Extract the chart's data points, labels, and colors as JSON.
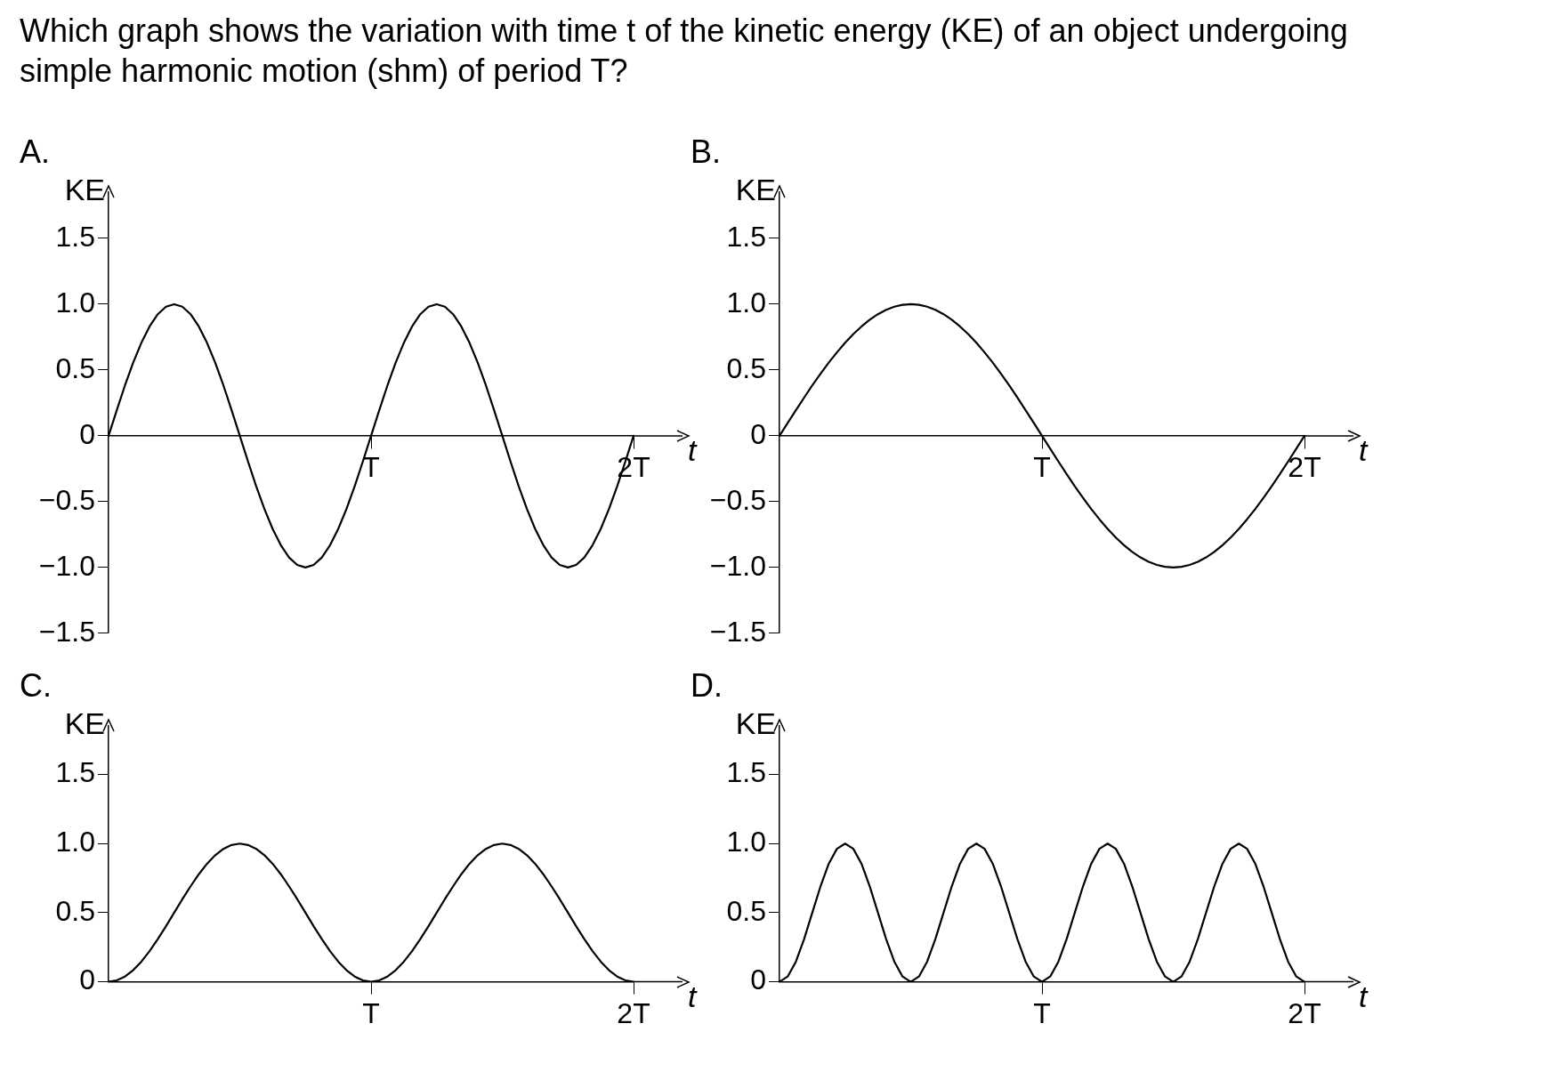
{
  "chart_data": [
    {
      "type": "line",
      "title": "A.",
      "annotations": [
        "Which graph shows the variation with time t of the kinetic energy (KE) of an object undergoing simple harmonic motion (shm) of period T?"
      ],
      "xlabel": "t",
      "ylabel": "KE",
      "marker": "none",
      "categories": [
        null,
        null,
        null,
        null,
        null,
        null,
        null,
        null,
        null,
        null,
        null,
        null,
        null,
        null,
        null,
        null,
        null,
        null,
        null,
        null,
        null,
        null,
        null,
        null,
        null,
        null,
        null,
        null,
        null,
        null,
        null,
        null,
        "T",
        null,
        null,
        null,
        null,
        null,
        null,
        null,
        null,
        null,
        null,
        null,
        null,
        null,
        null,
        null,
        null,
        null,
        null,
        null,
        null,
        null,
        null,
        null,
        null,
        null,
        null,
        null,
        null,
        null,
        null,
        null,
        "2T"
      ],
      "series": [
        {
          "color": "#000000",
          "values": [
            0,
            0.195,
            0.383,
            0.556,
            0.707,
            0.831,
            0.924,
            0.981,
            1,
            0.981,
            0.924,
            0.831,
            0.707,
            0.556,
            0.383,
            0.195,
            0,
            -0.195,
            -0.383,
            -0.556,
            -0.707,
            -0.831,
            -0.924,
            -0.981,
            -1,
            -0.981,
            -0.924,
            -0.831,
            -0.707,
            -0.556,
            -0.383,
            -0.195,
            0,
            0.195,
            0.383,
            0.556,
            0.707,
            0.831,
            0.924,
            0.981,
            1,
            0.981,
            0.924,
            0.831,
            0.707,
            0.556,
            0.383,
            0.195,
            0,
            -0.195,
            -0.383,
            -0.556,
            -0.707,
            -0.831,
            -0.924,
            -0.981,
            -1,
            -0.981,
            -0.924,
            -0.831,
            -0.707,
            -0.556,
            -0.383,
            -0.195,
            0
          ]
        }
      ],
      "ylim": [
        -1.5,
        1.85
      ],
      "yticks": [
        {
          "value": -1.5,
          "label": "−1.5"
        },
        {
          "value": -1,
          "label": "−1.0"
        },
        {
          "value": -0.5,
          "label": "−0.5"
        },
        0,
        0.5,
        {
          "value": 1,
          "label": "1.0"
        },
        1.5
      ]
    },
    {
      "type": "line",
      "title": "B.",
      "xlabel": "t",
      "ylabel": "KE",
      "marker": "none",
      "categories": [
        null,
        null,
        null,
        null,
        null,
        null,
        null,
        null,
        null,
        null,
        null,
        null,
        null,
        null,
        null,
        null,
        null,
        null,
        null,
        null,
        null,
        null,
        null,
        null,
        null,
        null,
        null,
        null,
        null,
        null,
        null,
        null,
        "T",
        null,
        null,
        null,
        null,
        null,
        null,
        null,
        null,
        null,
        null,
        null,
        null,
        null,
        null,
        null,
        null,
        null,
        null,
        null,
        null,
        null,
        null,
        null,
        null,
        null,
        null,
        null,
        null,
        null,
        null,
        null,
        "2T"
      ],
      "series": [
        {
          "color": "#000000",
          "values": [
            0,
            0.098,
            0.195,
            0.29,
            0.383,
            0.471,
            0.556,
            0.634,
            0.707,
            0.773,
            0.831,
            0.882,
            0.924,
            0.957,
            0.981,
            0.995,
            1,
            0.995,
            0.981,
            0.957,
            0.924,
            0.882,
            0.831,
            0.773,
            0.707,
            0.634,
            0.556,
            0.471,
            0.383,
            0.29,
            0.195,
            0.098,
            0,
            -0.098,
            -0.195,
            -0.29,
            -0.383,
            -0.471,
            -0.556,
            -0.634,
            -0.707,
            -0.773,
            -0.831,
            -0.882,
            -0.924,
            -0.957,
            -0.981,
            -0.995,
            -1,
            -0.995,
            -0.981,
            -0.957,
            -0.924,
            -0.882,
            -0.831,
            -0.773,
            -0.707,
            -0.634,
            -0.556,
            -0.471,
            -0.383,
            -0.29,
            -0.195,
            -0.098,
            0
          ]
        }
      ],
      "ylim": [
        -1.5,
        1.85
      ],
      "yticks": [
        {
          "value": -1.5,
          "label": "−1.5"
        },
        {
          "value": -1,
          "label": "−1.0"
        },
        {
          "value": -0.5,
          "label": "−0.5"
        },
        0,
        0.5,
        {
          "value": 1,
          "label": "1.0"
        },
        1.5
      ]
    },
    {
      "type": "line",
      "title": "C.",
      "xlabel": "t",
      "ylabel": "KE",
      "marker": "none",
      "categories": [
        null,
        null,
        null,
        null,
        null,
        null,
        null,
        null,
        null,
        null,
        null,
        null,
        null,
        null,
        null,
        null,
        null,
        null,
        null,
        null,
        null,
        null,
        null,
        null,
        null,
        null,
        null,
        null,
        null,
        null,
        null,
        null,
        "T",
        null,
        null,
        null,
        null,
        null,
        null,
        null,
        null,
        null,
        null,
        null,
        null,
        null,
        null,
        null,
        null,
        null,
        null,
        null,
        null,
        null,
        null,
        null,
        null,
        null,
        null,
        null,
        null,
        null,
        null,
        null,
        "2T"
      ],
      "series": [
        {
          "color": "#000000",
          "values": [
            0,
            0.01,
            0.038,
            0.084,
            0.146,
            0.222,
            0.309,
            0.402,
            0.5,
            0.598,
            0.691,
            0.778,
            0.854,
            0.916,
            0.962,
            0.99,
            1,
            0.99,
            0.962,
            0.916,
            0.854,
            0.778,
            0.691,
            0.598,
            0.5,
            0.402,
            0.309,
            0.222,
            0.146,
            0.084,
            0.038,
            0.01,
            0,
            0.01,
            0.038,
            0.084,
            0.146,
            0.222,
            0.309,
            0.402,
            0.5,
            0.598,
            0.691,
            0.778,
            0.854,
            0.916,
            0.962,
            0.99,
            1,
            0.99,
            0.962,
            0.916,
            0.854,
            0.778,
            0.691,
            0.598,
            0.5,
            0.402,
            0.309,
            0.222,
            0.146,
            0.084,
            0.038,
            0.01,
            0
          ]
        }
      ],
      "ylim": [
        0,
        1.85
      ],
      "yticks": [
        0,
        0.5,
        {
          "value": 1,
          "label": "1.0"
        },
        1.5
      ]
    },
    {
      "type": "line",
      "title": "D.",
      "xlabel": "t",
      "ylabel": "KE",
      "marker": "none",
      "categories": [
        null,
        null,
        null,
        null,
        null,
        null,
        null,
        null,
        null,
        null,
        null,
        null,
        null,
        null,
        null,
        null,
        null,
        null,
        null,
        null,
        null,
        null,
        null,
        null,
        null,
        null,
        null,
        null,
        null,
        null,
        null,
        null,
        "T",
        null,
        null,
        null,
        null,
        null,
        null,
        null,
        null,
        null,
        null,
        null,
        null,
        null,
        null,
        null,
        null,
        null,
        null,
        null,
        null,
        null,
        null,
        null,
        null,
        null,
        null,
        null,
        null,
        null,
        null,
        null,
        "2T"
      ],
      "series": [
        {
          "color": "#000000",
          "values": [
            0,
            0.038,
            0.146,
            0.309,
            0.5,
            0.691,
            0.854,
            0.962,
            1,
            0.962,
            0.854,
            0.691,
            0.5,
            0.309,
            0.146,
            0.038,
            0,
            0.038,
            0.146,
            0.309,
            0.5,
            0.691,
            0.854,
            0.962,
            1,
            0.962,
            0.854,
            0.691,
            0.5,
            0.309,
            0.146,
            0.038,
            0,
            0.038,
            0.146,
            0.309,
            0.5,
            0.691,
            0.854,
            0.962,
            1,
            0.962,
            0.854,
            0.691,
            0.5,
            0.309,
            0.146,
            0.038,
            0,
            0.038,
            0.146,
            0.309,
            0.5,
            0.691,
            0.854,
            0.962,
            1,
            0.962,
            0.854,
            0.691,
            0.5,
            0.309,
            0.146,
            0.038,
            0
          ]
        }
      ],
      "ylim": [
        0,
        1.85
      ],
      "yticks": [
        0,
        0.5,
        {
          "value": 1,
          "label": "1.0"
        },
        1.5
      ]
    }
  ]
}
